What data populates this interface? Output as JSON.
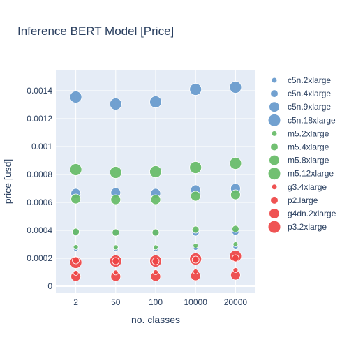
{
  "chart_data": {
    "type": "scatter",
    "title": "Inference BERT Model [Price]",
    "xlabel": "no. classes",
    "ylabel": "price [usd]",
    "categories": [
      "2",
      "50",
      "100",
      "10000",
      "20000"
    ],
    "ylim": [
      -5e-05,
      0.00155
    ],
    "yticks": [
      0,
      0.0002,
      0.0004,
      0.0006,
      0.0008,
      0.001,
      0.0012,
      0.0014
    ],
    "ytick_labels": [
      "0",
      "0.0002",
      "0.0004",
      "0.0006",
      "0.0008",
      "0.001",
      "0.0012",
      "0.0014"
    ],
    "grid": true,
    "legend_position": "right",
    "series": [
      {
        "name": "c5n.2xlarge",
        "color": "#6699cc",
        "size": 1,
        "values": [
          0.000268,
          0.000265,
          0.000265,
          0.000275,
          0.00028
        ]
      },
      {
        "name": "c5n.4xlarge",
        "color": "#6699cc",
        "size": 2,
        "values": [
          0.000385,
          0.000383,
          0.00038,
          0.000385,
          0.00039
        ]
      },
      {
        "name": "c5n.9xlarge",
        "color": "#6699cc",
        "size": 3,
        "values": [
          0.000665,
          0.00067,
          0.000665,
          0.00069,
          0.0007
        ]
      },
      {
        "name": "c5n.18xlarge",
        "color": "#6699cc",
        "size": 4,
        "values": [
          0.001355,
          0.001305,
          0.00132,
          0.00141,
          0.001425
        ]
      },
      {
        "name": "m5.2xlarge",
        "color": "#66bb66",
        "size": 1,
        "values": [
          0.00028,
          0.000278,
          0.000278,
          0.00029,
          0.0003
        ]
      },
      {
        "name": "m5.4xlarge",
        "color": "#66bb66",
        "size": 2,
        "values": [
          0.00039,
          0.000385,
          0.000385,
          0.000405,
          0.00041
        ]
      },
      {
        "name": "m5.8xlarge",
        "color": "#66bb66",
        "size": 3,
        "values": [
          0.000625,
          0.00062,
          0.00062,
          0.000645,
          0.000655
        ]
      },
      {
        "name": "m5.12xlarge",
        "color": "#66bb66",
        "size": 4,
        "values": [
          0.000835,
          0.000815,
          0.00082,
          0.00085,
          0.00088
        ]
      },
      {
        "name": "g3.4xlarge",
        "color": "#ee4444",
        "size": 1,
        "values": [
          9.5e-05,
          9.8e-05,
          0.0001,
          0.000105,
          0.000115
        ]
      },
      {
        "name": "p2.large",
        "color": "#ee4444",
        "size": 2,
        "values": [
          0.000185,
          0.00018,
          0.000178,
          0.00019,
          0.0002
        ]
      },
      {
        "name": "g4dn.2xlarge",
        "color": "#ee4444",
        "size": 3,
        "values": [
          7e-05,
          7e-05,
          7e-05,
          7.5e-05,
          8e-05
        ]
      },
      {
        "name": "p3.2xlarge",
        "color": "#ee4444",
        "size": 4,
        "values": [
          0.00017,
          0.00018,
          0.00018,
          0.000195,
          0.000215
        ]
      }
    ]
  }
}
